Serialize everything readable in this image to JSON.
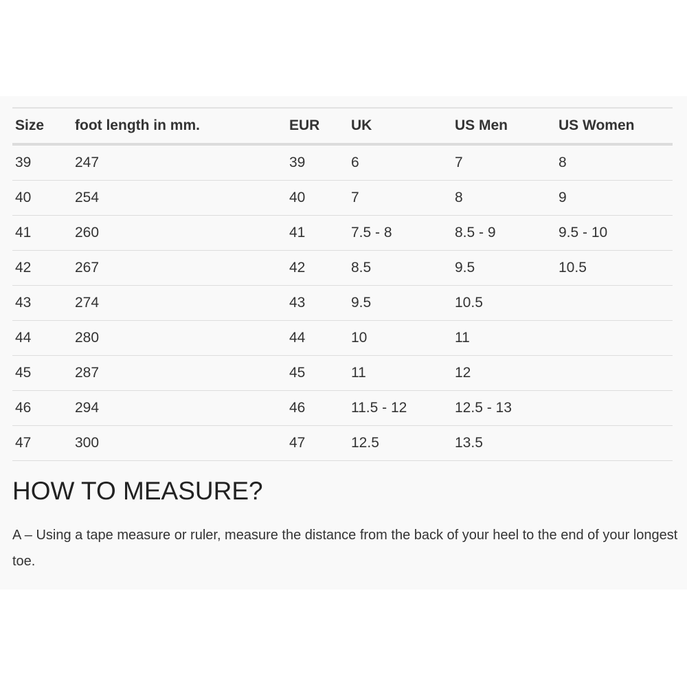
{
  "table": {
    "headers": [
      "Size",
      "foot length in mm.",
      "EUR",
      "UK",
      "US Men",
      "US Women"
    ],
    "rows": [
      [
        "39",
        "247",
        "39",
        "6",
        "7",
        "8"
      ],
      [
        "40",
        "254",
        "40",
        "7",
        "8",
        "9"
      ],
      [
        "41",
        "260",
        "41",
        "7.5 - 8",
        "8.5 - 9",
        "9.5 - 10"
      ],
      [
        "42",
        "267",
        "42",
        "8.5",
        "9.5",
        "10.5"
      ],
      [
        "43",
        "274",
        "43",
        "9.5",
        "10.5",
        ""
      ],
      [
        "44",
        "280",
        "44",
        "10",
        "11",
        ""
      ],
      [
        "45",
        "287",
        "45",
        "11",
        "12",
        ""
      ],
      [
        "46",
        "294",
        "46",
        "11.5 - 12",
        "12.5 - 13",
        ""
      ],
      [
        "47",
        "300",
        "47",
        "12.5",
        "13.5",
        ""
      ]
    ]
  },
  "measure": {
    "heading": "HOW TO MEASURE?",
    "text": "A – Using a tape measure or ruler, measure the distance from the back of your heel to the end of your longest toe."
  }
}
